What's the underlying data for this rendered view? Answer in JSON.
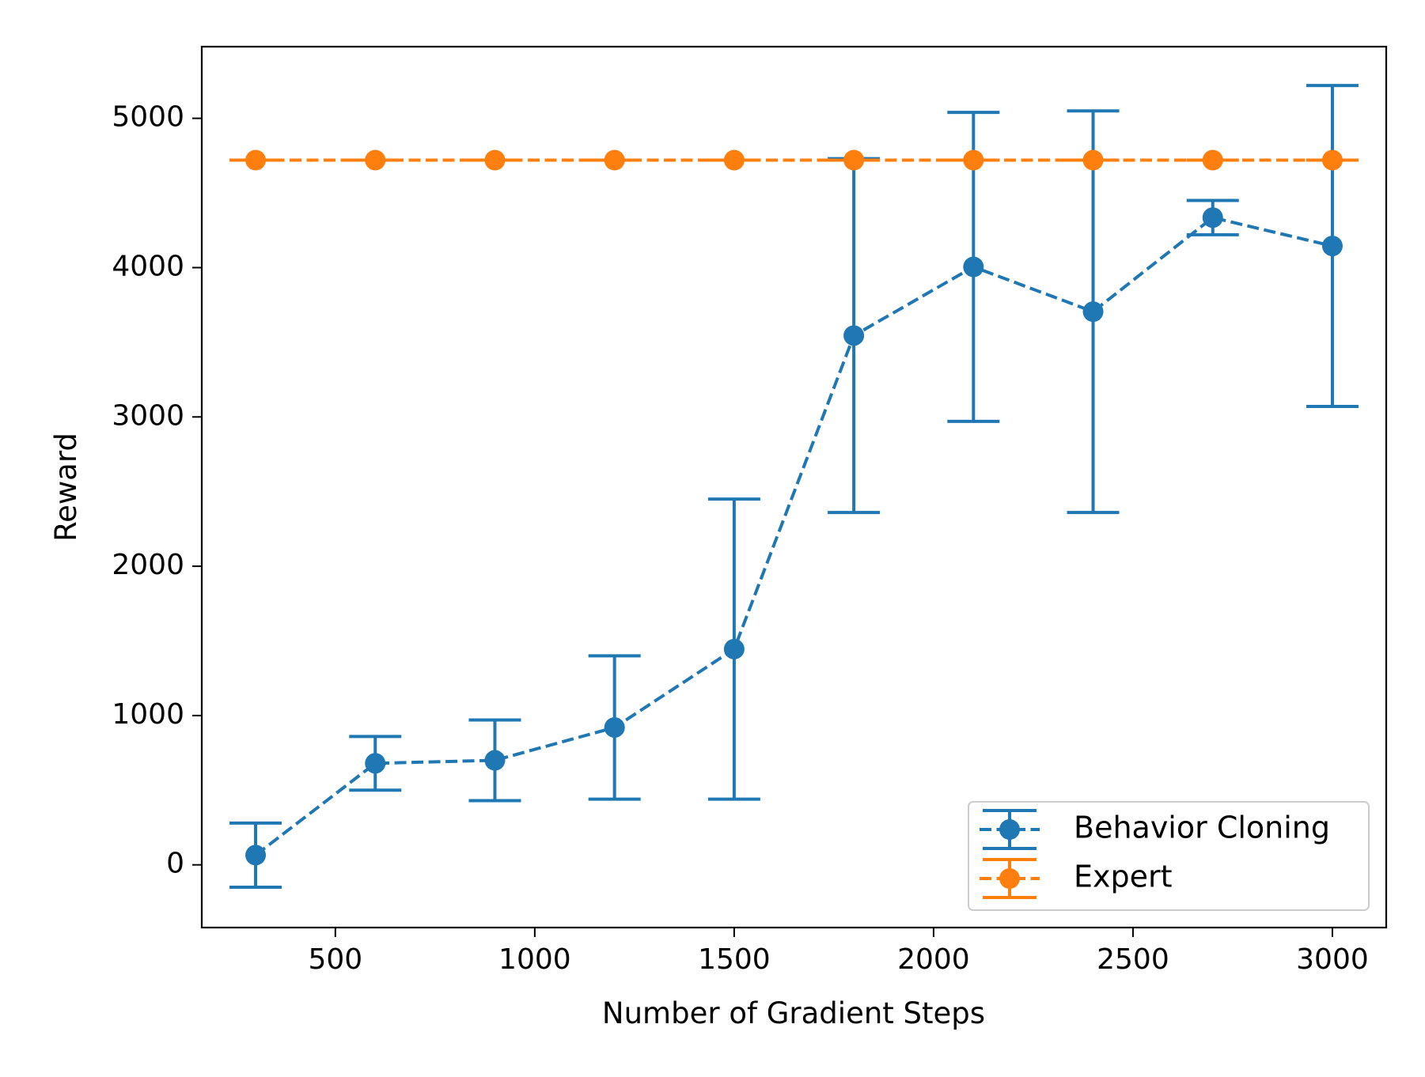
{
  "chart_data": {
    "type": "line",
    "title": "",
    "xlabel": "Number of Gradient Steps",
    "ylabel": "Reward",
    "xlim": [
      165,
      3135
    ],
    "ylim": [
      -420,
      5480
    ],
    "x_ticks": [
      500,
      1000,
      1500,
      2000,
      2500,
      3000
    ],
    "x_tick_labels": [
      "500",
      "1000",
      "1500",
      "2000",
      "2500",
      "3000"
    ],
    "y_ticks": [
      0,
      1000,
      2000,
      3000,
      4000,
      5000
    ],
    "y_tick_labels": [
      "0",
      "1000",
      "2000",
      "3000",
      "4000",
      "5000"
    ],
    "grid": false,
    "legend_position": "lower-right",
    "x": [
      300,
      600,
      900,
      1200,
      1500,
      1800,
      2100,
      2400,
      2700,
      3000
    ],
    "series": [
      {
        "name": "Behavior Cloning",
        "color": "#1f77b4",
        "linestyle": "dashed",
        "marker": "circle",
        "errorbars": true,
        "values": [
          65,
          680,
          700,
          920,
          1445,
          3545,
          4005,
          3705,
          4335,
          4145
        ],
        "errors": [
          215,
          180,
          270,
          480,
          1005,
          1185,
          1035,
          1345,
          115,
          1075
        ]
      },
      {
        "name": "Expert",
        "color": "#ff7f0e",
        "linestyle": "dashed",
        "marker": "circle",
        "errorbars": true,
        "values": [
          4720,
          4720,
          4720,
          4720,
          4720,
          4720,
          4720,
          4720,
          4720,
          4720
        ],
        "errors": [
          0,
          0,
          0,
          0,
          0,
          0,
          0,
          0,
          0,
          0
        ]
      }
    ]
  }
}
